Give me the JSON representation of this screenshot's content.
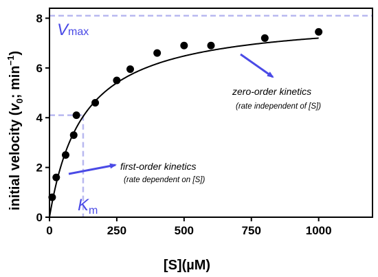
{
  "chart_data": {
    "type": "scatter",
    "title": "",
    "xlabel": "[S](µM)",
    "ylabel_parts": {
      "prefix": "initial velocity (",
      "v": "v",
      "sub": "0",
      "suffix": "; min",
      "sup": "−1",
      "close": ")"
    },
    "xlim": [
      0,
      1200
    ],
    "ylim": [
      0,
      8.4
    ],
    "xticks": [
      0,
      250,
      500,
      750,
      1000
    ],
    "yticks": [
      0,
      2,
      4,
      6,
      8
    ],
    "grid": false,
    "series": [
      {
        "points": [
          {
            "x": 10,
            "y": 0.8
          },
          {
            "x": 25,
            "y": 1.6
          },
          {
            "x": 60,
            "y": 2.5
          },
          {
            "x": 90,
            "y": 3.3
          },
          {
            "x": 100,
            "y": 4.1
          },
          {
            "x": 170,
            "y": 4.6
          },
          {
            "x": 250,
            "y": 5.5
          },
          {
            "x": 300,
            "y": 5.95
          },
          {
            "x": 400,
            "y": 6.6
          },
          {
            "x": 500,
            "y": 6.9
          },
          {
            "x": 600,
            "y": 6.9
          },
          {
            "x": 800,
            "y": 7.2
          },
          {
            "x": 1000,
            "y": 7.45
          }
        ]
      }
    ],
    "fit": {
      "model": "michaelis-menten",
      "vmax": 8.1,
      "km": 125,
      "x_range": [
        0,
        1000
      ]
    },
    "reference_lines": {
      "vmax_y": 8.1,
      "km_x": 125,
      "half_vmax_y": 4.1
    },
    "annotations": {
      "vmax": {
        "main": "V",
        "sub": "max"
      },
      "km": {
        "main": "K",
        "sub": "m"
      },
      "first_order": {
        "line1": "first-order kinetics",
        "line2": "(rate dependent on [S])"
      },
      "zero_order": {
        "line1": "zero-order kinetics",
        "line2": "(rate independent of [S])"
      }
    },
    "colors": {
      "accent": "#4a4ae6",
      "dashed": "#b8b8f0",
      "points": "#000000"
    }
  }
}
